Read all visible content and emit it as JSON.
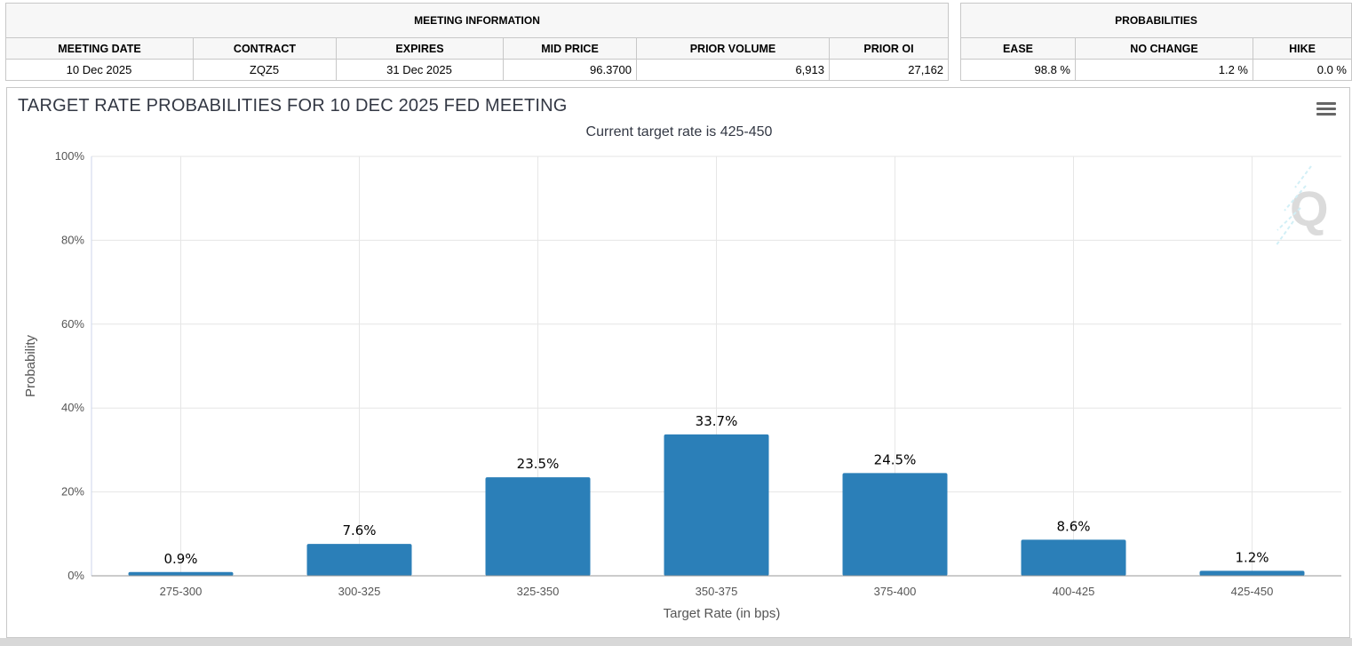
{
  "meeting_info": {
    "title": "MEETING INFORMATION",
    "headers": [
      "MEETING DATE",
      "CONTRACT",
      "EXPIRES",
      "MID PRICE",
      "PRIOR VOLUME",
      "PRIOR OI"
    ],
    "values": [
      "10 Dec 2025",
      "ZQZ5",
      "31 Dec 2025",
      "96.3700",
      "6,913",
      "27,162"
    ]
  },
  "probabilities": {
    "title": "PROBABILITIES",
    "headers": [
      "EASE",
      "NO CHANGE",
      "HIKE"
    ],
    "values": [
      "98.8 %",
      "1.2 %",
      "0.0 %"
    ]
  },
  "menu_icon": "hamburger-menu-icon",
  "watermark_icon": "q-logo-watermark",
  "colors": {
    "bar": "#2b7fb8",
    "grid": "#e6e6e6",
    "title": "#333844"
  },
  "chart_data": {
    "type": "bar",
    "title": "TARGET RATE PROBABILITIES FOR 10 DEC 2025 FED MEETING",
    "subtitle": "Current target rate is 425-450",
    "xlabel": "Target Rate (in bps)",
    "ylabel": "Probability",
    "categories": [
      "275-300",
      "300-325",
      "325-350",
      "350-375",
      "375-400",
      "400-425",
      "425-450"
    ],
    "values": [
      0.9,
      7.6,
      23.5,
      33.7,
      24.5,
      8.6,
      1.2
    ],
    "data_labels": [
      "0.9%",
      "7.6%",
      "23.5%",
      "33.7%",
      "24.5%",
      "8.6%",
      "1.2%"
    ],
    "ylim": [
      0,
      100
    ],
    "yticks": [
      "0%",
      "20%",
      "40%",
      "60%",
      "80%",
      "100%"
    ],
    "grid": true,
    "legend": "none"
  }
}
